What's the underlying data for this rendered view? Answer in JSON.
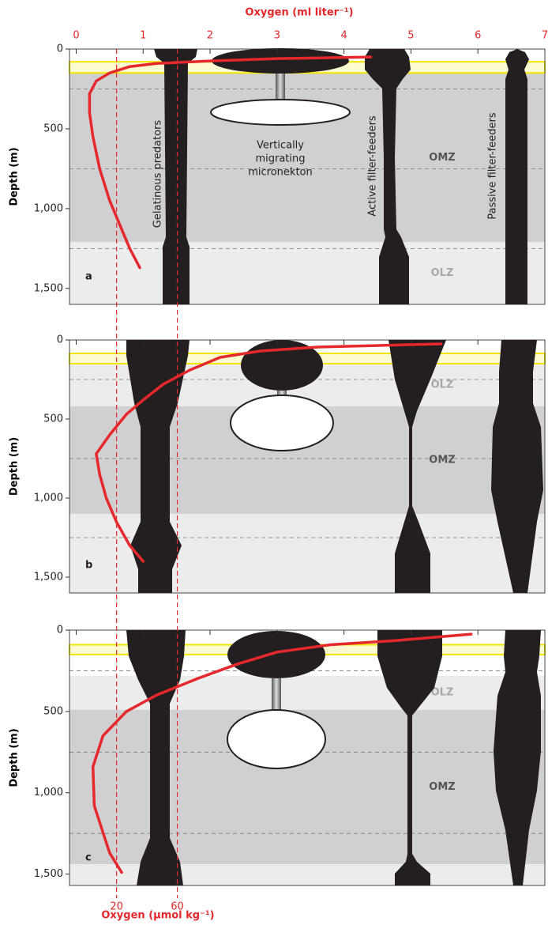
{
  "chart_data": [
    {
      "type": "line",
      "panel": "a",
      "xlabel": "Oxygen (ml liter⁻¹)",
      "ylabel": "Depth (m)",
      "xlim": [
        -0.1,
        7
      ],
      "xticks": [
        0,
        1,
        2,
        3,
        4,
        5,
        6,
        7
      ],
      "ylim": [
        0,
        1600
      ],
      "yticks": [
        0,
        500,
        {
          "value": 1000,
          "label": "1,000"
        },
        {
          "value": 1500,
          "label": "1,500"
        }
      ],
      "minor_grid": [
        250,
        750,
        1250
      ],
      "band": [
        80,
        150
      ],
      "band_color": "#f2e600",
      "zones": [
        {
          "top": 150,
          "bottom": 1210,
          "label": "OMZ",
          "color": "#d0d0d3",
          "label_color": "#555555"
        },
        {
          "top": 1210,
          "bottom": 1600,
          "label": "OLZ",
          "color": "#ececec",
          "label_color": "#a8a8a8"
        }
      ],
      "columns": [
        {
          "label": "Gelatinous predators"
        },
        {
          "label_lines": [
            "Vertically",
            "migrating",
            "micronekton"
          ]
        },
        {
          "label": "Active filter-feeders"
        },
        {
          "label": "Passive filter-feeders"
        }
      ],
      "series": [
        {
          "color": "#e4282b",
          "x": [
            4.4,
            3.0,
            2.0,
            1.2,
            0.8,
            0.5,
            0.3,
            0.2,
            0.2,
            0.25,
            0.35,
            0.5,
            0.65,
            0.8,
            0.95
          ],
          "values": [
            50,
            60,
            75,
            90,
            110,
            150,
            200,
            280,
            400,
            550,
            750,
            950,
            1100,
            1250,
            1370
          ]
        }
      ]
    },
    {
      "type": "line",
      "panel": "b",
      "ylabel": "Depth (m)",
      "xlim": [
        -0.1,
        7
      ],
      "xticks": [
        0,
        1,
        2,
        3,
        4,
        5,
        6,
        7
      ],
      "ylim": [
        0,
        1600
      ],
      "yticks": [
        0,
        500,
        {
          "value": 1000,
          "label": "1,000"
        },
        {
          "value": 1500,
          "label": "1,500"
        }
      ],
      "minor_grid": [
        250,
        750,
        1250
      ],
      "band": [
        85,
        150
      ],
      "band_color": "#f2e600",
      "zones": [
        {
          "top": 150,
          "bottom": 420,
          "label": "OLZ",
          "color": "#ececec",
          "label_color": "#a8a8a8"
        },
        {
          "top": 420,
          "bottom": 1100,
          "label": "OMZ",
          "color": "#d0d0d3",
          "label_color": "#555555"
        },
        {
          "top": 1100,
          "bottom": 1600,
          "label": null,
          "color": "#ececec",
          "label_color": "#a8a8a8"
        }
      ],
      "series": [
        {
          "color": "#e4282b",
          "x": [
            5.45,
            3.6,
            2.75,
            2.15,
            1.7,
            1.3,
            1.0,
            0.75,
            0.5,
            0.3,
            0.35,
            0.45,
            0.6,
            0.8,
            1.0
          ],
          "values": [
            25,
            45,
            70,
            110,
            190,
            280,
            380,
            470,
            600,
            720,
            850,
            1000,
            1150,
            1300,
            1400
          ]
        }
      ]
    },
    {
      "type": "line",
      "panel": "c",
      "ylabel": "Depth (m)",
      "x2label": "Oxygen (µmol kg⁻¹)",
      "xlim": [
        -0.1,
        7
      ],
      "xticks": [
        0,
        1,
        2,
        3,
        4,
        5,
        6,
        7
      ],
      "x2lim": [
        -11,
        302
      ],
      "x2ticks": [
        20,
        60
      ],
      "ylim": [
        0,
        1570
      ],
      "yticks": [
        0,
        500,
        {
          "value": 1000,
          "label": "1,000"
        },
        {
          "value": 1500,
          "label": "1,500"
        }
      ],
      "minor_grid": [
        250,
        750,
        1250
      ],
      "band": [
        90,
        150
      ],
      "band_color": "#f2e600",
      "zones": [
        {
          "top": 280,
          "bottom": 490,
          "label": "OLZ",
          "color": "#ececec",
          "label_color": "#a8a8a8"
        },
        {
          "top": 490,
          "bottom": 1440,
          "label": "OMZ",
          "color": "#d0d0d3",
          "label_color": "#555555"
        },
        {
          "top": 1440,
          "bottom": 1570,
          "label": null,
          "color": "#ececec",
          "label_color": "#a8a8a8"
        }
      ],
      "series": [
        {
          "color": "#e4282b",
          "x": [
            5.9,
            4.75,
            3.8,
            3.0,
            2.4,
            1.8,
            1.2,
            0.75,
            0.4,
            0.25,
            0.27,
            0.5,
            0.68
          ],
          "values": [
            25,
            65,
            90,
            135,
            210,
            300,
            400,
            500,
            650,
            840,
            1080,
            1370,
            1490
          ]
        }
      ]
    }
  ]
}
